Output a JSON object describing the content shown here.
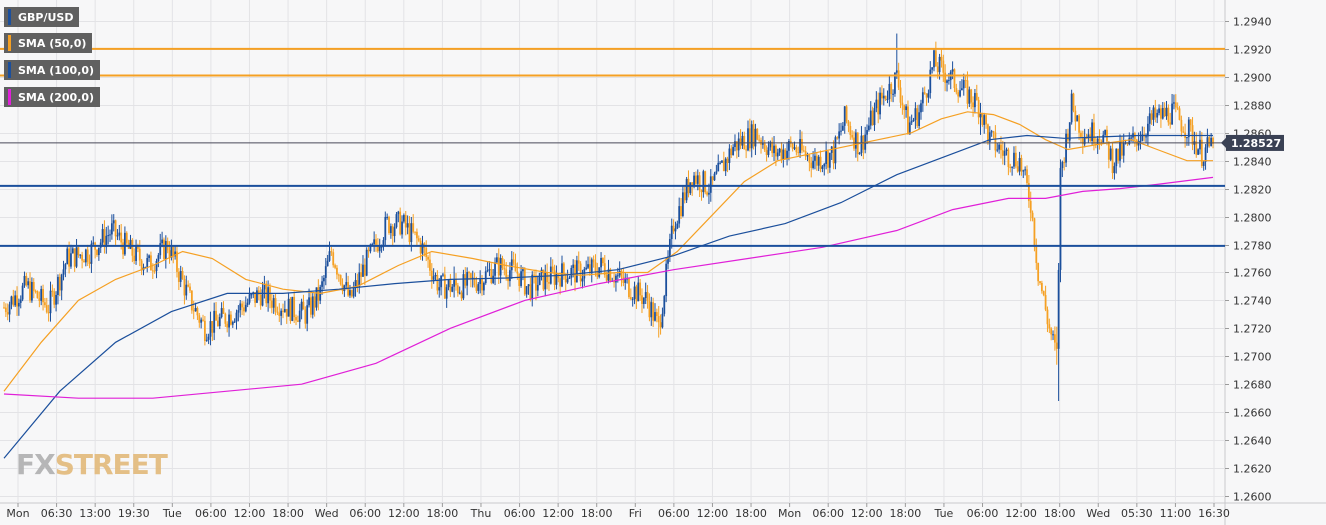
{
  "symbol": "GBP/USD",
  "colors": {
    "background": "#f7f7f8",
    "grid": "#e3e3e6",
    "bull": "#1b4f9c",
    "bear": "#f5a023",
    "sma50": "#f5a023",
    "sma100": "#1b4f9c",
    "sma200": "#e020d8",
    "resistance": "#f5a023",
    "support": "#1b4f9c",
    "price_line": "#4a4a5a",
    "price_tag": "#3a4154"
  },
  "watermark": {
    "part1": "FX",
    "part2": "STREET"
  },
  "chart_data": {
    "type": "candlestick",
    "title": "GBP/USD",
    "legend": [
      {
        "name": "GBP/USD",
        "color": "#1b4f9c"
      },
      {
        "name": "SMA (50,0)",
        "color": "#f5a023"
      },
      {
        "name": "SMA (100,0)",
        "color": "#1b4f9c"
      },
      {
        "name": "SMA (200,0)",
        "color": "#e020d8"
      }
    ],
    "y_axis": {
      "position": "right",
      "min": 1.2595,
      "max": 1.2955,
      "ticks": [
        "1.2600",
        "1.2620",
        "1.2640",
        "1.2660",
        "1.2680",
        "1.2700",
        "1.2720",
        "1.2740",
        "1.2760",
        "1.2780",
        "1.2800",
        "1.2820",
        "1.2840",
        "1.2860",
        "1.2880",
        "1.2900",
        "1.2920",
        "1.2940"
      ]
    },
    "x_axis": {
      "ticks": [
        "Mon",
        "06:30",
        "13:00",
        "19:30",
        "Tue",
        "06:00",
        "12:00",
        "18:00",
        "Wed",
        "06:00",
        "12:00",
        "18:00",
        "Thu",
        "06:00",
        "12:00",
        "18:00",
        "Fri",
        "06:00",
        "12:00",
        "18:00",
        "Mon",
        "06:00",
        "12:00",
        "18:00",
        "Tue",
        "06:00",
        "12:00",
        "18:00",
        "Wed",
        "05:30",
        "11:00",
        "16:30"
      ]
    },
    "current_price": "1.28527",
    "current_value": 1.28527,
    "horizontal_levels": [
      {
        "value": 1.292,
        "kind": "resistance"
      },
      {
        "value": 1.2901,
        "kind": "resistance"
      },
      {
        "value": 1.2822,
        "kind": "support"
      },
      {
        "value": 1.2779,
        "kind": "support"
      }
    ],
    "series": [
      {
        "name": "GBP/USD",
        "kind": "candles",
        "anchors": [
          [
            0,
            1.2735
          ],
          [
            12,
            1.275
          ],
          [
            24,
            1.2735
          ],
          [
            34,
            1.277
          ],
          [
            46,
            1.2775
          ],
          [
            58,
            1.279
          ],
          [
            68,
            1.2775
          ],
          [
            78,
            1.2765
          ],
          [
            88,
            1.278
          ],
          [
            100,
            1.274
          ],
          [
            108,
            1.272
          ],
          [
            122,
            1.273
          ],
          [
            138,
            1.2745
          ],
          [
            152,
            1.2735
          ],
          [
            162,
            1.273
          ],
          [
            170,
            1.2745
          ],
          [
            176,
            1.2775
          ],
          [
            186,
            1.274
          ],
          [
            194,
            1.2765
          ],
          [
            206,
            1.2795
          ],
          [
            214,
            1.2795
          ],
          [
            224,
            1.278
          ],
          [
            234,
            1.275
          ],
          [
            246,
            1.275
          ],
          [
            256,
            1.2755
          ],
          [
            266,
            1.2765
          ],
          [
            276,
            1.276
          ],
          [
            282,
            1.2748
          ],
          [
            290,
            1.2755
          ],
          [
            302,
            1.276
          ],
          [
            312,
            1.276
          ],
          [
            322,
            1.2765
          ],
          [
            334,
            1.2752
          ],
          [
            346,
            1.274
          ],
          [
            352,
            1.272
          ],
          [
            360,
            1.2795
          ],
          [
            370,
            1.283
          ],
          [
            380,
            1.282
          ],
          [
            392,
            1.285
          ],
          [
            404,
            1.286
          ],
          [
            414,
            1.2845
          ],
          [
            424,
            1.285
          ],
          [
            436,
            1.284
          ],
          [
            446,
            1.2845
          ],
          [
            452,
            1.287
          ],
          [
            460,
            1.285
          ],
          [
            470,
            1.288
          ],
          [
            480,
            1.29
          ],
          [
            486,
            1.2865
          ],
          [
            492,
            1.2875
          ],
          [
            500,
            1.291
          ],
          [
            508,
            1.29
          ],
          [
            516,
            1.289
          ],
          [
            524,
            1.288
          ],
          [
            530,
            1.2855
          ],
          [
            538,
            1.2845
          ],
          [
            546,
            1.284
          ],
          [
            552,
            1.281
          ],
          [
            556,
            1.276
          ],
          [
            562,
            1.272
          ],
          [
            566,
            1.27
          ],
          [
            568,
            1.283
          ],
          [
            574,
            1.288
          ],
          [
            580,
            1.286
          ],
          [
            590,
            1.286
          ],
          [
            596,
            1.284
          ],
          [
            608,
            1.2855
          ],
          [
            618,
            1.287
          ],
          [
            628,
            1.2875
          ],
          [
            638,
            1.286
          ],
          [
            644,
            1.2845
          ],
          [
            650,
            1.2852
          ]
        ],
        "open": 1.2735,
        "close": 1.2852,
        "high": 1.2931,
        "low": 1.2668
      },
      {
        "name": "SMA (50,0)",
        "kind": "line",
        "values": [
          [
            0,
            1.2675
          ],
          [
            20,
            1.271
          ],
          [
            40,
            1.274
          ],
          [
            60,
            1.2755
          ],
          [
            80,
            1.2765
          ],
          [
            96,
            1.2775
          ],
          [
            112,
            1.277
          ],
          [
            130,
            1.2755
          ],
          [
            150,
            1.2748
          ],
          [
            170,
            1.2745
          ],
          [
            190,
            1.275
          ],
          [
            212,
            1.2765
          ],
          [
            230,
            1.2775
          ],
          [
            252,
            1.277
          ],
          [
            270,
            1.2765
          ],
          [
            292,
            1.276
          ],
          [
            310,
            1.2758
          ],
          [
            330,
            1.276
          ],
          [
            346,
            1.276
          ],
          [
            362,
            1.2775
          ],
          [
            380,
            1.28
          ],
          [
            398,
            1.2825
          ],
          [
            416,
            1.284
          ],
          [
            434,
            1.2845
          ],
          [
            452,
            1.285
          ],
          [
            470,
            1.2855
          ],
          [
            488,
            1.286
          ],
          [
            504,
            1.287
          ],
          [
            518,
            1.2875
          ],
          [
            532,
            1.2873
          ],
          [
            546,
            1.2866
          ],
          [
            560,
            1.2855
          ],
          [
            572,
            1.2848
          ],
          [
            590,
            1.2852
          ],
          [
            606,
            1.2855
          ],
          [
            620,
            1.2848
          ],
          [
            636,
            1.284
          ],
          [
            650,
            1.284
          ]
        ]
      },
      {
        "name": "SMA (100,0)",
        "kind": "line",
        "values": [
          [
            0,
            1.2627
          ],
          [
            30,
            1.2675
          ],
          [
            60,
            1.271
          ],
          [
            90,
            1.2732
          ],
          [
            120,
            1.2745
          ],
          [
            150,
            1.2745
          ],
          [
            180,
            1.2748
          ],
          [
            210,
            1.2752
          ],
          [
            240,
            1.2755
          ],
          [
            270,
            1.2756
          ],
          [
            300,
            1.2758
          ],
          [
            330,
            1.2762
          ],
          [
            360,
            1.2772
          ],
          [
            390,
            1.2786
          ],
          [
            420,
            1.2795
          ],
          [
            450,
            1.281
          ],
          [
            480,
            1.283
          ],
          [
            510,
            1.2845
          ],
          [
            530,
            1.2855
          ],
          [
            550,
            1.2858
          ],
          [
            570,
            1.2856
          ],
          [
            590,
            1.2857
          ],
          [
            610,
            1.2858
          ],
          [
            630,
            1.2858
          ],
          [
            650,
            1.2858
          ]
        ]
      },
      {
        "name": "SMA (200,0)",
        "kind": "line",
        "values": [
          [
            0,
            1.2673
          ],
          [
            40,
            1.267
          ],
          [
            80,
            1.267
          ],
          [
            120,
            1.2675
          ],
          [
            160,
            1.268
          ],
          [
            200,
            1.2695
          ],
          [
            240,
            1.272
          ],
          [
            280,
            1.274
          ],
          [
            320,
            1.2752
          ],
          [
            360,
            1.2762
          ],
          [
            400,
            1.277
          ],
          [
            440,
            1.2778
          ],
          [
            480,
            1.279
          ],
          [
            510,
            1.2805
          ],
          [
            540,
            1.2813
          ],
          [
            560,
            1.2813
          ],
          [
            580,
            1.2818
          ],
          [
            600,
            1.282
          ],
          [
            620,
            1.2823
          ],
          [
            650,
            1.2828
          ]
        ]
      }
    ]
  }
}
